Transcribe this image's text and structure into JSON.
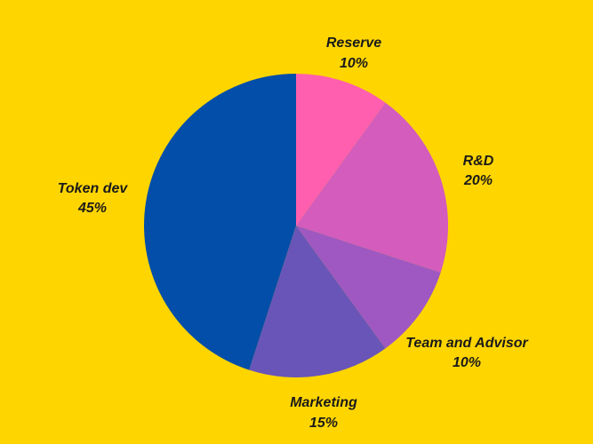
{
  "colors": {
    "background": "#ffd500",
    "label": "#1a1a1a"
  },
  "chart_data": {
    "type": "pie",
    "title": "",
    "legend": "none",
    "start_angle_deg": 0,
    "direction": "clockwise",
    "slices": [
      {
        "label": "Reserve",
        "value": 10,
        "pct_label": "10%",
        "color": "#ff5fae"
      },
      {
        "label": "R&D",
        "value": 20,
        "pct_label": "20%",
        "color": "#d35cbd"
      },
      {
        "label": "Team and Advisor",
        "value": 10,
        "pct_label": "10%",
        "color": "#9f58c2"
      },
      {
        "label": "Marketing",
        "value": 15,
        "pct_label": "15%",
        "color": "#6955b8"
      },
      {
        "label": "Token dev",
        "value": 45,
        "pct_label": "45%",
        "color": "#034ea8"
      }
    ]
  }
}
